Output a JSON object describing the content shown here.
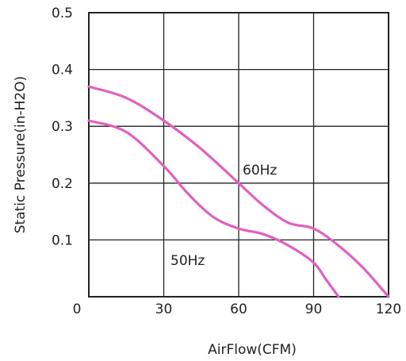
{
  "chart_data": {
    "type": "line",
    "title": "",
    "xlabel": "AirFlow(CFM)",
    "ylabel": "Static Pressure(in-H2O)",
    "xlim": [
      0,
      120
    ],
    "ylim": [
      0,
      0.5
    ],
    "x_ticks": [
      "0",
      "30",
      "60",
      "90",
      "120"
    ],
    "y_ticks": [
      "0.1",
      "0.2",
      "0.3",
      "0.4",
      "0.5"
    ],
    "grid": true,
    "line_color": "#e060c0",
    "series": [
      {
        "name": "60Hz",
        "points": [
          [
            0,
            0.37
          ],
          [
            15,
            0.35
          ],
          [
            30,
            0.31
          ],
          [
            45,
            0.26
          ],
          [
            60,
            0.2
          ],
          [
            70,
            0.16
          ],
          [
            80,
            0.13
          ],
          [
            90,
            0.12
          ],
          [
            100,
            0.09
          ],
          [
            110,
            0.05
          ],
          [
            120,
            0.0
          ]
        ]
      },
      {
        "name": "50Hz",
        "points": [
          [
            0,
            0.31
          ],
          [
            15,
            0.29
          ],
          [
            30,
            0.23
          ],
          [
            40,
            0.18
          ],
          [
            50,
            0.14
          ],
          [
            60,
            0.12
          ],
          [
            70,
            0.11
          ],
          [
            80,
            0.09
          ],
          [
            90,
            0.06
          ],
          [
            95,
            0.03
          ],
          [
            100,
            0.0
          ]
        ]
      }
    ]
  }
}
